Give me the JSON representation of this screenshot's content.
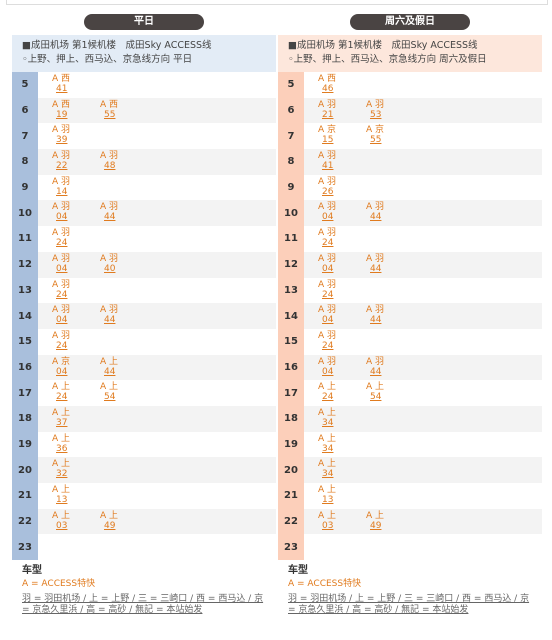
{
  "panels": [
    {
      "tab": "平日",
      "header": [
        "■成田机场 第1候机楼　成田Sky ACCESS线",
        "◦上野、押上、西马込、京急线方向 平日"
      ],
      "rows": [
        {
          "hour": "5",
          "trains": [
            {
              "type": "A",
              "dest": "西",
              "minute": "41"
            }
          ]
        },
        {
          "hour": "6",
          "trains": [
            {
              "type": "A",
              "dest": "西",
              "minute": "19"
            },
            {
              "type": "A",
              "dest": "西",
              "minute": "55"
            }
          ]
        },
        {
          "hour": "7",
          "trains": [
            {
              "type": "A",
              "dest": "羽",
              "minute": "39"
            }
          ]
        },
        {
          "hour": "8",
          "trains": [
            {
              "type": "A",
              "dest": "羽",
              "minute": "22"
            },
            {
              "type": "A",
              "dest": "羽",
              "minute": "48"
            }
          ]
        },
        {
          "hour": "9",
          "trains": [
            {
              "type": "A",
              "dest": "羽",
              "minute": "14"
            }
          ]
        },
        {
          "hour": "10",
          "trains": [
            {
              "type": "A",
              "dest": "羽",
              "minute": "04"
            },
            {
              "type": "A",
              "dest": "羽",
              "minute": "44"
            }
          ]
        },
        {
          "hour": "11",
          "trains": [
            {
              "type": "A",
              "dest": "羽",
              "minute": "24"
            }
          ]
        },
        {
          "hour": "12",
          "trains": [
            {
              "type": "A",
              "dest": "羽",
              "minute": "04"
            },
            {
              "type": "A",
              "dest": "羽",
              "minute": "40"
            }
          ]
        },
        {
          "hour": "13",
          "trains": [
            {
              "type": "A",
              "dest": "羽",
              "minute": "24"
            }
          ]
        },
        {
          "hour": "14",
          "trains": [
            {
              "type": "A",
              "dest": "羽",
              "minute": "04"
            },
            {
              "type": "A",
              "dest": "羽",
              "minute": "44"
            }
          ]
        },
        {
          "hour": "15",
          "trains": [
            {
              "type": "A",
              "dest": "羽",
              "minute": "24"
            }
          ]
        },
        {
          "hour": "16",
          "trains": [
            {
              "type": "A",
              "dest": "京",
              "minute": "04"
            },
            {
              "type": "A",
              "dest": "上",
              "minute": "44"
            }
          ]
        },
        {
          "hour": "17",
          "trains": [
            {
              "type": "A",
              "dest": "上",
              "minute": "24"
            },
            {
              "type": "A",
              "dest": "上",
              "minute": "54"
            }
          ]
        },
        {
          "hour": "18",
          "trains": [
            {
              "type": "A",
              "dest": "上",
              "minute": "37"
            }
          ]
        },
        {
          "hour": "19",
          "trains": [
            {
              "type": "A",
              "dest": "上",
              "minute": "36"
            }
          ]
        },
        {
          "hour": "20",
          "trains": [
            {
              "type": "A",
              "dest": "上",
              "minute": "32"
            }
          ]
        },
        {
          "hour": "21",
          "trains": [
            {
              "type": "A",
              "dest": "上",
              "minute": "13"
            }
          ]
        },
        {
          "hour": "22",
          "trains": [
            {
              "type": "A",
              "dest": "上",
              "minute": "03"
            },
            {
              "type": "A",
              "dest": "上",
              "minute": "49"
            }
          ]
        },
        {
          "hour": "23",
          "trains": []
        }
      ]
    },
    {
      "tab": "周六及假日",
      "header": [
        "■成田机场 第1候机楼　成田Sky ACCESS线",
        "◦上野、押上、西马込、京急线方向 周六及假日"
      ],
      "rows": [
        {
          "hour": "5",
          "trains": [
            {
              "type": "A",
              "dest": "西",
              "minute": "46"
            }
          ]
        },
        {
          "hour": "6",
          "trains": [
            {
              "type": "A",
              "dest": "羽",
              "minute": "21"
            },
            {
              "type": "A",
              "dest": "羽",
              "minute": "53"
            }
          ]
        },
        {
          "hour": "7",
          "trains": [
            {
              "type": "A",
              "dest": "京",
              "minute": "15"
            },
            {
              "type": "A",
              "dest": "京",
              "minute": "55"
            }
          ]
        },
        {
          "hour": "8",
          "trains": [
            {
              "type": "A",
              "dest": "羽",
              "minute": "41"
            }
          ]
        },
        {
          "hour": "9",
          "trains": [
            {
              "type": "A",
              "dest": "羽",
              "minute": "26"
            }
          ]
        },
        {
          "hour": "10",
          "trains": [
            {
              "type": "A",
              "dest": "羽",
              "minute": "04"
            },
            {
              "type": "A",
              "dest": "羽",
              "minute": "44"
            }
          ]
        },
        {
          "hour": "11",
          "trains": [
            {
              "type": "A",
              "dest": "羽",
              "minute": "24"
            }
          ]
        },
        {
          "hour": "12",
          "trains": [
            {
              "type": "A",
              "dest": "羽",
              "minute": "04"
            },
            {
              "type": "A",
              "dest": "羽",
              "minute": "44"
            }
          ]
        },
        {
          "hour": "13",
          "trains": [
            {
              "type": "A",
              "dest": "羽",
              "minute": "24"
            }
          ]
        },
        {
          "hour": "14",
          "trains": [
            {
              "type": "A",
              "dest": "羽",
              "minute": "04"
            },
            {
              "type": "A",
              "dest": "羽",
              "minute": "44"
            }
          ]
        },
        {
          "hour": "15",
          "trains": [
            {
              "type": "A",
              "dest": "羽",
              "minute": "24"
            }
          ]
        },
        {
          "hour": "16",
          "trains": [
            {
              "type": "A",
              "dest": "羽",
              "minute": "04"
            },
            {
              "type": "A",
              "dest": "羽",
              "minute": "44"
            }
          ]
        },
        {
          "hour": "17",
          "trains": [
            {
              "type": "A",
              "dest": "上",
              "minute": "24"
            },
            {
              "type": "A",
              "dest": "上",
              "minute": "54"
            }
          ]
        },
        {
          "hour": "18",
          "trains": [
            {
              "type": "A",
              "dest": "上",
              "minute": "34"
            }
          ]
        },
        {
          "hour": "19",
          "trains": [
            {
              "type": "A",
              "dest": "上",
              "minute": "34"
            }
          ]
        },
        {
          "hour": "20",
          "trains": [
            {
              "type": "A",
              "dest": "上",
              "minute": "34"
            }
          ]
        },
        {
          "hour": "21",
          "trains": [
            {
              "type": "A",
              "dest": "上",
              "minute": "13"
            }
          ]
        },
        {
          "hour": "22",
          "trains": [
            {
              "type": "A",
              "dest": "上",
              "minute": "03"
            },
            {
              "type": "A",
              "dest": "上",
              "minute": "49"
            }
          ]
        },
        {
          "hour": "23",
          "trains": []
        }
      ]
    }
  ],
  "legend": {
    "title": "车型",
    "types": "A = ACCESS特快",
    "destinations": "羽 = 羽田机场 / 上 = 上野 / 三 = 三崎口 / 西 = 西马込 / 京 = 京急久里浜 / 高 = 高砂 / 無記 = 本站始发"
  }
}
